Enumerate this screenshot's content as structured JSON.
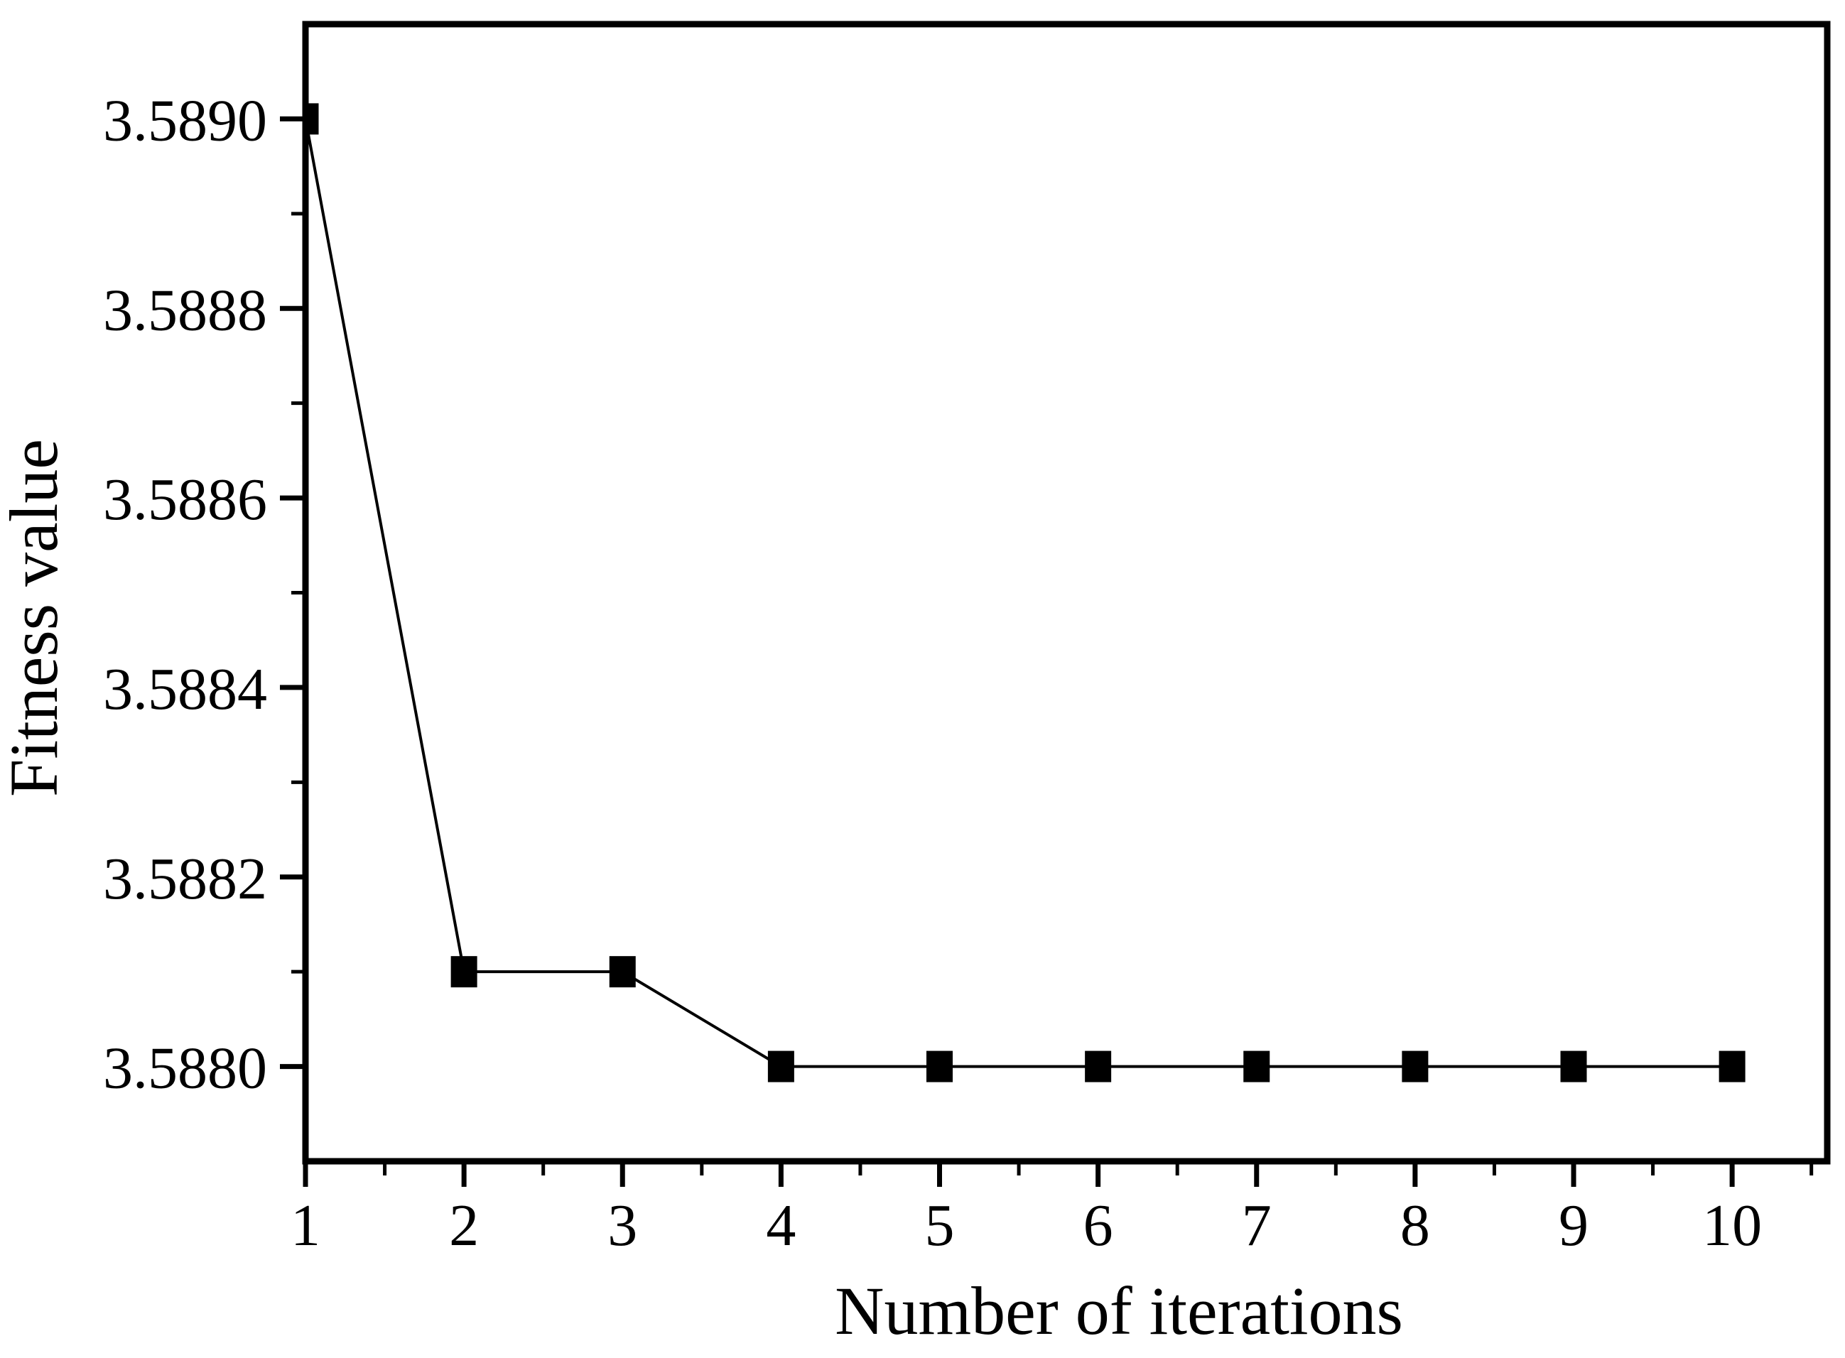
{
  "figure": {
    "background": "#ffffff"
  },
  "chart_data": {
    "type": "line",
    "title": "",
    "xlabel": "Number of iterations",
    "ylabel": "Fitness value",
    "series": [
      {
        "name": "fitness-curve",
        "marker": "filled-square",
        "line_color": "#000000",
        "marker_color": "#000000",
        "x": [
          1,
          2,
          3,
          4,
          5,
          6,
          7,
          8,
          9,
          10
        ],
        "y": [
          3.589,
          3.5881,
          3.5881,
          3.588,
          3.588,
          3.588,
          3.588,
          3.588,
          3.588,
          3.588
        ]
      }
    ],
    "xlim": [
      1,
      10.6
    ],
    "ylim": [
      3.5879,
      3.5891
    ],
    "x_major_ticks": [
      1,
      2,
      3,
      4,
      5,
      6,
      7,
      8,
      9,
      10
    ],
    "x_tick_labels": [
      "1",
      "2",
      "3",
      "4",
      "5",
      "6",
      "7",
      "8",
      "9",
      "10"
    ],
    "x_minor_tick_step": 0.5,
    "y_major_ticks": [
      3.588,
      3.5882,
      3.5884,
      3.5886,
      3.5888,
      3.589
    ],
    "y_tick_labels": [
      "3.5880",
      "3.5882",
      "3.5884",
      "3.5886",
      "3.5888",
      "3.5890"
    ],
    "y_minor_tick_step": 0.0001,
    "grid": false,
    "legend": "none",
    "axis_color": "#000000",
    "text_color": "#000000",
    "background": "#ffffff"
  }
}
